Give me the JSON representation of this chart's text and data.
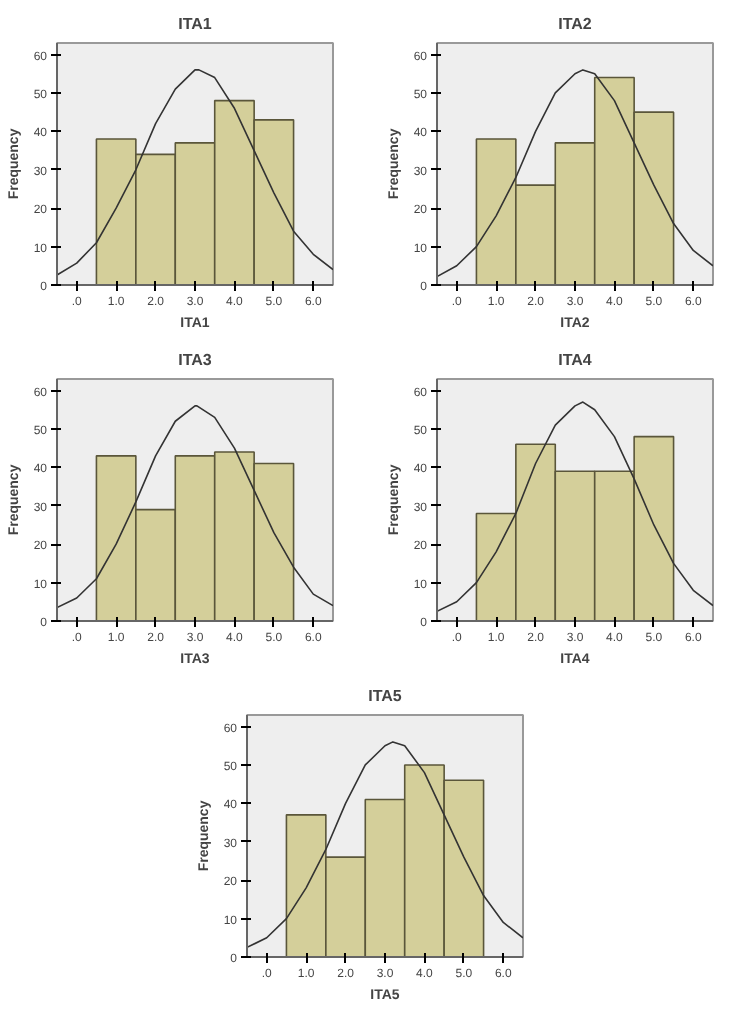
{
  "chart_data": [
    {
      "type": "histogram",
      "title": "ITA1",
      "xlabel": "ITA1",
      "ylabel": "Frequency",
      "bins": [
        0.5,
        1.5,
        2.5,
        3.5,
        4.5,
        5.5
      ],
      "xlim": [
        -0.5,
        6.5
      ],
      "ylim": [
        0,
        63
      ],
      "xticks": [
        {
          "value": 0,
          "label": ".0"
        },
        {
          "value": 1,
          "label": "1.0"
        },
        {
          "value": 2,
          "label": "2.0"
        },
        {
          "value": 3,
          "label": "3.0"
        },
        {
          "value": 4,
          "label": "4.0"
        },
        {
          "value": 5,
          "label": "5.0"
        },
        {
          "value": 6,
          "label": "6.0"
        }
      ],
      "yticks": [
        0,
        10,
        20,
        30,
        40,
        50,
        60
      ],
      "grid": false,
      "series": [
        {
          "color": "#d4cf9a",
          "values": [
            38,
            34,
            37,
            48,
            43
          ]
        },
        {
          "type": "line",
          "color": "#333333",
          "x": [
            -0.5,
            0,
            0.5,
            1,
            1.5,
            2,
            2.5,
            3,
            3.1,
            3.5,
            4,
            4.5,
            5,
            5.5,
            6,
            6.5
          ],
          "values": [
            2.6,
            5.7,
            11,
            20,
            30,
            42,
            51,
            56,
            56,
            54,
            46,
            35,
            24,
            14,
            8,
            4
          ]
        }
      ]
    },
    {
      "type": "histogram",
      "title": "ITA2",
      "xlabel": "ITA2",
      "ylabel": "Frequency",
      "bins": [
        0.5,
        1.5,
        2.5,
        3.5,
        4.5,
        5.5
      ],
      "xlim": [
        -0.5,
        6.5
      ],
      "ylim": [
        0,
        63
      ],
      "xticks": [
        {
          "value": 0,
          "label": ".0"
        },
        {
          "value": 1,
          "label": "1.0"
        },
        {
          "value": 2,
          "label": "2.0"
        },
        {
          "value": 3,
          "label": "3.0"
        },
        {
          "value": 4,
          "label": "4.0"
        },
        {
          "value": 5,
          "label": "5.0"
        },
        {
          "value": 6,
          "label": "6.0"
        }
      ],
      "yticks": [
        0,
        10,
        20,
        30,
        40,
        50,
        60
      ],
      "grid": false,
      "series": [
        {
          "color": "#d4cf9a",
          "values": [
            38,
            26,
            37,
            54,
            45
          ]
        },
        {
          "type": "line",
          "color": "#333333",
          "x": [
            -0.5,
            0,
            0.5,
            1,
            1.5,
            2,
            2.5,
            3,
            3.2,
            3.5,
            4,
            4.5,
            5,
            5.5,
            6,
            6.5
          ],
          "values": [
            2.2,
            5,
            10,
            18,
            28,
            40,
            50,
            55,
            56,
            55,
            48,
            37,
            26,
            16,
            9,
            5
          ]
        }
      ]
    },
    {
      "type": "histogram",
      "title": "ITA3",
      "xlabel": "ITA3",
      "ylabel": "Frequency",
      "bins": [
        0.5,
        1.5,
        2.5,
        3.5,
        4.5,
        5.5
      ],
      "xlim": [
        -0.5,
        6.5
      ],
      "ylim": [
        0,
        63
      ],
      "xticks": [
        {
          "value": 0,
          "label": ".0"
        },
        {
          "value": 1,
          "label": "1.0"
        },
        {
          "value": 2,
          "label": "2.0"
        },
        {
          "value": 3,
          "label": "3.0"
        },
        {
          "value": 4,
          "label": "4.0"
        },
        {
          "value": 5,
          "label": "5.0"
        },
        {
          "value": 6,
          "label": "6.0"
        }
      ],
      "yticks": [
        0,
        10,
        20,
        30,
        40,
        50,
        60
      ],
      "grid": false,
      "series": [
        {
          "color": "#d4cf9a",
          "values": [
            43,
            29,
            43,
            44,
            41
          ]
        },
        {
          "type": "line",
          "color": "#333333",
          "x": [
            -0.5,
            0,
            0.5,
            1,
            1.5,
            2,
            2.5,
            3,
            3.05,
            3.5,
            4,
            4.5,
            5,
            5.5,
            6,
            6.5
          ],
          "values": [
            3.5,
            6,
            11,
            20,
            31,
            43,
            52,
            56,
            56,
            53,
            45,
            34,
            23,
            14,
            7,
            4
          ]
        }
      ]
    },
    {
      "type": "histogram",
      "title": "ITA4",
      "xlabel": "ITA4",
      "ylabel": "Frequency",
      "bins": [
        0.5,
        1.5,
        2.5,
        3.5,
        4.5,
        5.5
      ],
      "xlim": [
        -0.5,
        6.5
      ],
      "ylim": [
        0,
        63
      ],
      "xticks": [
        {
          "value": 0,
          "label": ".0"
        },
        {
          "value": 1,
          "label": "1.0"
        },
        {
          "value": 2,
          "label": "2.0"
        },
        {
          "value": 3,
          "label": "3.0"
        },
        {
          "value": 4,
          "label": "4.0"
        },
        {
          "value": 5,
          "label": "5.0"
        },
        {
          "value": 6,
          "label": "6.0"
        }
      ],
      "yticks": [
        0,
        10,
        20,
        30,
        40,
        50,
        60
      ],
      "grid": false,
      "series": [
        {
          "color": "#d4cf9a",
          "values": [
            28,
            46,
            39,
            39,
            48
          ]
        },
        {
          "type": "line",
          "color": "#333333",
          "x": [
            -0.5,
            0,
            0.5,
            1,
            1.5,
            2,
            2.5,
            3,
            3.2,
            3.5,
            4,
            4.5,
            5,
            5.5,
            6,
            6.5
          ],
          "values": [
            2.5,
            5,
            10,
            18,
            28,
            41,
            51,
            56,
            57,
            55,
            48,
            37,
            25,
            15,
            8,
            4
          ]
        }
      ]
    },
    {
      "type": "histogram",
      "title": "ITA5",
      "xlabel": "ITA5",
      "ylabel": "Frequency",
      "bins": [
        0.5,
        1.5,
        2.5,
        3.5,
        4.5,
        5.5
      ],
      "xlim": [
        -0.5,
        6.5
      ],
      "ylim": [
        0,
        63
      ],
      "xticks": [
        {
          "value": 0,
          "label": ".0"
        },
        {
          "value": 1,
          "label": "1.0"
        },
        {
          "value": 2,
          "label": "2.0"
        },
        {
          "value": 3,
          "label": "3.0"
        },
        {
          "value": 4,
          "label": "4.0"
        },
        {
          "value": 5,
          "label": "5.0"
        },
        {
          "value": 6,
          "label": "6.0"
        }
      ],
      "yticks": [
        0,
        10,
        20,
        30,
        40,
        50,
        60
      ],
      "grid": false,
      "series": [
        {
          "color": "#d4cf9a",
          "values": [
            37,
            26,
            41,
            50,
            46
          ]
        },
        {
          "type": "line",
          "color": "#333333",
          "x": [
            -0.5,
            0,
            0.5,
            1,
            1.5,
            2,
            2.5,
            3,
            3.2,
            3.5,
            4,
            4.5,
            5,
            5.5,
            6,
            6.5
          ],
          "values": [
            2.5,
            5,
            10,
            18,
            28,
            40,
            50,
            55,
            56,
            55,
            48,
            37,
            26,
            16,
            9,
            5
          ]
        }
      ]
    }
  ]
}
